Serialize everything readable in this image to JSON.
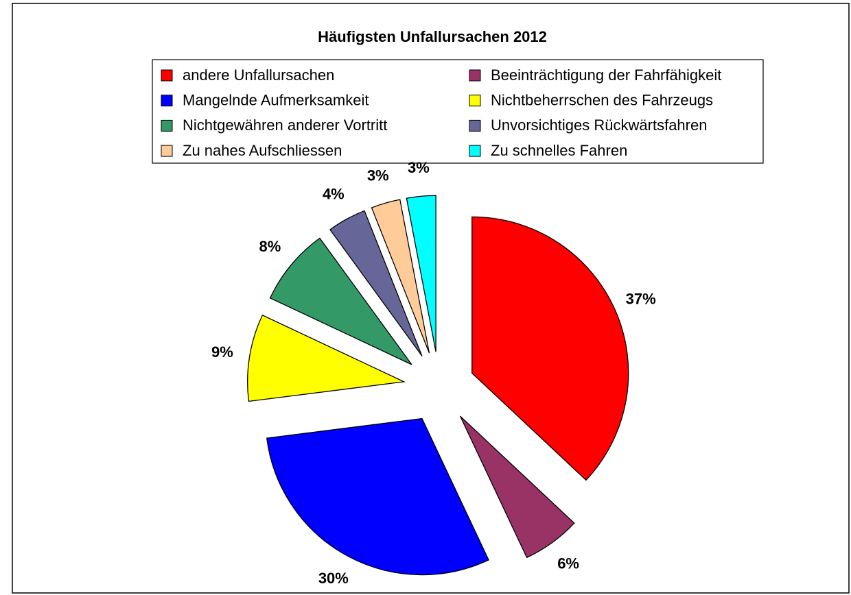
{
  "chart_data": {
    "type": "pie",
    "title": "Häufigsten Unfallursachen 2012",
    "categories": [
      "andere Unfallursachen",
      "Beeinträchtigung der Fahrfähigkeit",
      "Mangelnde Aufmerksamkeit",
      "Nichtbeherrschen des Fahrzeugs",
      "Nichtgewähren anderer Vortritt",
      "Unvorsichtiges Rückwärtsfahren",
      "Zu nahes Aufschliessen",
      "Zu schnelles Fahren"
    ],
    "values": [
      37,
      6,
      30,
      9,
      8,
      4,
      3,
      3
    ],
    "value_labels": [
      "37%",
      "6%",
      "30%",
      "9%",
      "8%",
      "4%",
      "3%",
      "3%"
    ],
    "colors": [
      "#ff0000",
      "#993366",
      "#0000ff",
      "#ffff00",
      "#339966",
      "#666699",
      "#ffcc99",
      "#00ffff"
    ],
    "legend": "top"
  }
}
